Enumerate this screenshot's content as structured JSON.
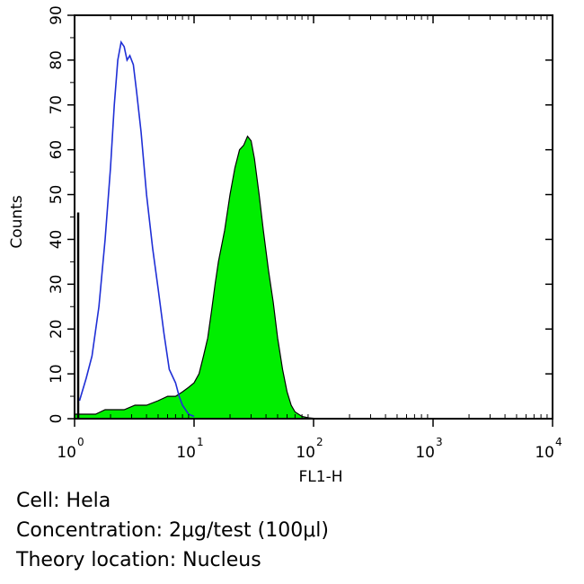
{
  "chart_data": {
    "type": "area",
    "xlabel": "FL1-H",
    "ylabel": "Counts",
    "x_scale": "log",
    "xlim": [
      1,
      10000
    ],
    "ylim": [
      0,
      90
    ],
    "x_ticks": [
      {
        "base": "10",
        "exp": "0",
        "value": 1
      },
      {
        "base": "10",
        "exp": "1",
        "value": 10
      },
      {
        "base": "10",
        "exp": "2",
        "value": 100
      },
      {
        "base": "10",
        "exp": "3",
        "value": 1000
      },
      {
        "base": "10",
        "exp": "4",
        "value": 10000
      }
    ],
    "y_ticks": [
      "0",
      "10",
      "20",
      "30",
      "40",
      "50",
      "60",
      "70",
      "80",
      "90"
    ],
    "series": [
      {
        "style": "outline",
        "color": "#1f2fd6",
        "points": [
          [
            1.1,
            4
          ],
          [
            1.25,
            9
          ],
          [
            1.4,
            14
          ],
          [
            1.6,
            25
          ],
          [
            1.8,
            40
          ],
          [
            2.0,
            56
          ],
          [
            2.15,
            70
          ],
          [
            2.3,
            80
          ],
          [
            2.45,
            84
          ],
          [
            2.6,
            83
          ],
          [
            2.75,
            80
          ],
          [
            2.9,
            81
          ],
          [
            3.1,
            79
          ],
          [
            3.3,
            73
          ],
          [
            3.6,
            64
          ],
          [
            4.0,
            50
          ],
          [
            4.5,
            38
          ],
          [
            5.0,
            29
          ],
          [
            5.6,
            19
          ],
          [
            6.2,
            11
          ],
          [
            7.0,
            8
          ],
          [
            7.5,
            5
          ],
          [
            8.0,
            3
          ],
          [
            9.0,
            1
          ],
          [
            10,
            0.5
          ]
        ]
      },
      {
        "style": "filled",
        "color": "#00ee00",
        "points": [
          [
            1.0,
            1
          ],
          [
            1.2,
            1
          ],
          [
            1.5,
            1
          ],
          [
            1.8,
            2
          ],
          [
            2.2,
            2
          ],
          [
            2.6,
            2
          ],
          [
            3.2,
            3
          ],
          [
            4.0,
            3
          ],
          [
            5.0,
            4
          ],
          [
            6.0,
            5
          ],
          [
            7.0,
            5
          ],
          [
            8.0,
            6
          ],
          [
            9.0,
            7
          ],
          [
            10,
            8
          ],
          [
            11,
            10
          ],
          [
            12,
            14
          ],
          [
            13,
            18
          ],
          [
            14,
            24
          ],
          [
            15,
            30
          ],
          [
            16,
            35
          ],
          [
            18,
            42
          ],
          [
            20,
            50
          ],
          [
            22,
            56
          ],
          [
            24,
            60
          ],
          [
            26,
            61
          ],
          [
            28,
            63
          ],
          [
            30,
            62
          ],
          [
            32,
            58
          ],
          [
            35,
            50
          ],
          [
            38,
            42
          ],
          [
            42,
            33
          ],
          [
            46,
            26
          ],
          [
            50,
            18
          ],
          [
            55,
            11
          ],
          [
            60,
            6
          ],
          [
            65,
            3
          ],
          [
            70,
            1.5
          ],
          [
            80,
            0.5
          ],
          [
            90,
            0.2
          ],
          [
            100,
            0.1
          ]
        ]
      }
    ]
  },
  "captions": {
    "cell": "Cell: Hela",
    "concentration": "Concentration: 2μg/test (100μl)",
    "theory_location": "Theory location: Nucleus"
  }
}
